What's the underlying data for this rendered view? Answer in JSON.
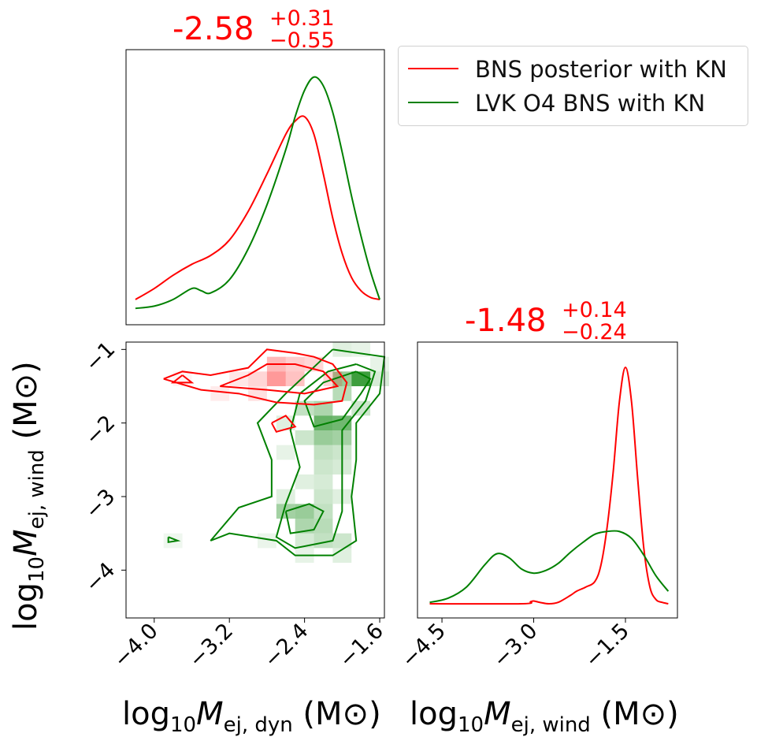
{
  "chart_data": [
    {
      "type": "line",
      "panel": "top-left marginal",
      "title_value": "-2.58",
      "title_plus": "+0.31",
      "title_minus": "−0.55",
      "xlim": [
        -4.3,
        -1.55
      ],
      "series": [
        {
          "name": "BNS posterior with KN",
          "color": "#ff0000",
          "x": [
            -4.2,
            -4.0,
            -3.8,
            -3.6,
            -3.4,
            -3.2,
            -3.0,
            -2.8,
            -2.6,
            -2.5,
            -2.4,
            -2.3,
            -2.2,
            -2.1,
            -2.0,
            -1.9,
            -1.8,
            -1.7,
            -1.6
          ],
          "y": [
            0.05,
            0.1,
            0.16,
            0.21,
            0.25,
            0.32,
            0.45,
            0.62,
            0.8,
            0.86,
            0.88,
            0.8,
            0.62,
            0.42,
            0.26,
            0.15,
            0.09,
            0.06,
            0.05
          ]
        },
        {
          "name": "LVK O4 BNS with KN",
          "color": "#008000",
          "x": [
            -4.2,
            -4.0,
            -3.8,
            -3.6,
            -3.5,
            -3.4,
            -3.2,
            -3.0,
            -2.8,
            -2.6,
            -2.5,
            -2.4,
            -2.3,
            -2.2,
            -2.1,
            -2.0,
            -1.9,
            -1.8,
            -1.7,
            -1.6
          ],
          "y": [
            0.01,
            0.02,
            0.05,
            0.1,
            0.09,
            0.08,
            0.14,
            0.28,
            0.48,
            0.73,
            0.88,
            1.0,
            1.06,
            1.02,
            0.9,
            0.72,
            0.52,
            0.34,
            0.18,
            0.05
          ]
        }
      ]
    },
    {
      "type": "heatmap",
      "panel": "bottom-left joint",
      "xlabel": "log10Mej,dyn (M⊙)",
      "ylabel": "log10Mej,wind (M⊙)",
      "xlim": [
        -4.3,
        -1.55
      ],
      "ylim": [
        -4.65,
        -0.9
      ],
      "xticks": [
        -4.0,
        -3.2,
        -2.4,
        -1.6
      ],
      "xtick_labels": [
        "−4.0",
        "−3.2",
        "−2.4",
        "−1.6"
      ],
      "yticks": [
        -1,
        -2,
        -3,
        -4
      ],
      "ytick_labels": [
        "−1",
        "−2",
        "−3",
        "−4"
      ],
      "red_cells": [
        [
          -2.7,
          -1.2,
          0.35
        ],
        [
          -2.7,
          -1.4,
          0.5
        ],
        [
          -2.5,
          -1.2,
          0.25
        ],
        [
          -2.3,
          -1.2,
          0.2
        ],
        [
          -2.1,
          -1.4,
          0.2
        ],
        [
          -2.9,
          -1.4,
          0.2
        ],
        [
          -3.1,
          -1.4,
          0.12
        ],
        [
          -3.3,
          -1.6,
          0.1
        ],
        [
          -2.9,
          -1.6,
          0.15
        ],
        [
          -2.5,
          -1.4,
          0.3
        ],
        [
          -3.7,
          -1.4,
          0.06
        ]
      ],
      "green_cells": [
        [
          -1.8,
          -1.4,
          0.95
        ],
        [
          -2.0,
          -1.4,
          0.5
        ],
        [
          -2.0,
          -1.6,
          0.35
        ],
        [
          -2.0,
          -2.0,
          0.7
        ],
        [
          -2.2,
          -2.0,
          0.75
        ],
        [
          -2.2,
          -2.2,
          0.5
        ],
        [
          -2.0,
          -2.2,
          0.45
        ],
        [
          -2.2,
          -1.8,
          0.4
        ],
        [
          -2.4,
          -1.8,
          0.3
        ],
        [
          -2.4,
          -2.2,
          0.25
        ],
        [
          -2.2,
          -2.4,
          0.3
        ],
        [
          -2.2,
          -2.6,
          0.25
        ],
        [
          -2.2,
          -2.8,
          0.2
        ],
        [
          -2.2,
          -3.0,
          0.25
        ],
        [
          -2.2,
          -3.2,
          0.3
        ],
        [
          -2.4,
          -3.2,
          0.5
        ],
        [
          -2.6,
          -3.2,
          0.45
        ],
        [
          -2.4,
          -3.4,
          0.4
        ],
        [
          -2.2,
          -3.4,
          0.35
        ],
        [
          -2.2,
          -3.6,
          0.3
        ],
        [
          -2.0,
          -3.6,
          0.25
        ],
        [
          -2.4,
          -3.6,
          0.2
        ],
        [
          -2.0,
          -2.6,
          0.2
        ],
        [
          -2.6,
          -2.0,
          0.15
        ],
        [
          -2.6,
          -2.4,
          0.12
        ],
        [
          -1.8,
          -1.8,
          0.25
        ],
        [
          -1.6,
          -1.4,
          0.2
        ],
        [
          -1.6,
          -1.2,
          0.12
        ],
        [
          -2.0,
          -1.0,
          0.15
        ],
        [
          -1.8,
          -1.0,
          0.12
        ],
        [
          -2.6,
          -3.0,
          0.15
        ],
        [
          -2.0,
          -2.4,
          0.25
        ],
        [
          -2.0,
          -3.0,
          0.15
        ],
        [
          -2.4,
          -2.8,
          0.15
        ],
        [
          -3.8,
          -3.6,
          0.08
        ],
        [
          -2.8,
          -3.6,
          0.1
        ],
        [
          -2.0,
          -3.8,
          0.15
        ],
        [
          -2.4,
          -3.8,
          0.12
        ]
      ],
      "red_contours": [
        [
          [
            -3.9,
            -1.4
          ],
          [
            -3.7,
            -1.3
          ],
          [
            -3.4,
            -1.35
          ],
          [
            -3.0,
            -1.25
          ],
          [
            -2.8,
            -1.0
          ],
          [
            -2.5,
            -1.05
          ],
          [
            -2.3,
            -1.1
          ],
          [
            -2.1,
            -1.2
          ],
          [
            -1.95,
            -1.45
          ],
          [
            -2.0,
            -1.7
          ],
          [
            -2.3,
            -1.75
          ],
          [
            -2.7,
            -1.72
          ],
          [
            -3.1,
            -1.6
          ],
          [
            -3.5,
            -1.55
          ],
          [
            -3.9,
            -1.4
          ]
        ],
        [
          [
            -3.7,
            -1.35
          ],
          [
            -3.8,
            -1.45
          ],
          [
            -3.6,
            -1.45
          ],
          [
            -3.7,
            -1.35
          ]
        ],
        [
          [
            -3.3,
            -1.5
          ],
          [
            -3.0,
            -1.35
          ],
          [
            -2.8,
            -1.2
          ],
          [
            -2.5,
            -1.2
          ],
          [
            -2.2,
            -1.3
          ],
          [
            -2.05,
            -1.5
          ],
          [
            -2.4,
            -1.6
          ],
          [
            -2.8,
            -1.55
          ],
          [
            -3.3,
            -1.5
          ]
        ],
        [
          [
            -2.75,
            -2.0
          ],
          [
            -2.6,
            -1.9
          ],
          [
            -2.5,
            -2.05
          ],
          [
            -2.7,
            -2.12
          ],
          [
            -2.75,
            -2.0
          ]
        ]
      ],
      "green_contours": [
        [
          [
            -2.1,
            -1.0
          ],
          [
            -1.55,
            -1.1
          ],
          [
            -1.6,
            -1.6
          ],
          [
            -1.85,
            -2.0
          ],
          [
            -1.85,
            -2.5
          ],
          [
            -1.9,
            -3.0
          ],
          [
            -1.85,
            -3.6
          ],
          [
            -2.1,
            -3.8
          ],
          [
            -2.5,
            -3.8
          ],
          [
            -2.7,
            -3.6
          ],
          [
            -3.2,
            -3.5
          ],
          [
            -3.4,
            -3.6
          ],
          [
            -3.1,
            -3.15
          ],
          [
            -2.75,
            -3.0
          ],
          [
            -2.75,
            -2.5
          ],
          [
            -2.9,
            -2.0
          ],
          [
            -2.6,
            -1.6
          ],
          [
            -2.35,
            -1.3
          ],
          [
            -2.1,
            -1.0
          ]
        ],
        [
          [
            -1.85,
            -1.2
          ],
          [
            -1.65,
            -1.3
          ],
          [
            -1.75,
            -1.7
          ],
          [
            -2.0,
            -2.1
          ],
          [
            -2.0,
            -2.6
          ],
          [
            -2.0,
            -3.2
          ],
          [
            -2.1,
            -3.6
          ],
          [
            -2.5,
            -3.7
          ],
          [
            -2.7,
            -3.55
          ],
          [
            -2.6,
            -3.1
          ],
          [
            -2.45,
            -2.6
          ],
          [
            -2.55,
            -2.1
          ],
          [
            -2.45,
            -1.6
          ],
          [
            -2.15,
            -1.3
          ],
          [
            -1.85,
            -1.2
          ]
        ],
        [
          [
            -1.85,
            -1.3
          ],
          [
            -1.7,
            -1.4
          ],
          [
            -1.8,
            -1.6
          ],
          [
            -2.0,
            -1.95
          ],
          [
            -2.3,
            -2.05
          ],
          [
            -2.4,
            -1.7
          ],
          [
            -2.2,
            -1.45
          ],
          [
            -1.85,
            -1.3
          ]
        ],
        [
          [
            -2.6,
            -3.2
          ],
          [
            -2.35,
            -3.1
          ],
          [
            -2.2,
            -3.2
          ],
          [
            -2.3,
            -3.45
          ],
          [
            -2.55,
            -3.5
          ],
          [
            -2.6,
            -3.2
          ]
        ],
        [
          [
            -3.85,
            -3.55
          ],
          [
            -3.75,
            -3.6
          ],
          [
            -3.85,
            -3.62
          ],
          [
            -3.85,
            -3.55
          ]
        ]
      ]
    },
    {
      "type": "line",
      "panel": "bottom-right marginal",
      "title_value": "-1.48",
      "title_plus": "+0.14",
      "title_minus": "−0.24",
      "xlabel": "log10Mej,wind (M⊙)",
      "xlim": [
        -4.9,
        -0.65
      ],
      "xticks": [
        -4.5,
        -3.0,
        -1.5
      ],
      "xtick_labels": [
        "−4.5",
        "−3.0",
        "−1.5"
      ],
      "series": [
        {
          "name": "BNS posterior with KN",
          "color": "#ff0000",
          "x": [
            -4.7,
            -3.2,
            -3.05,
            -3.0,
            -2.9,
            -2.75,
            -2.6,
            -2.4,
            -2.3,
            -2.15,
            -2.0,
            -1.9,
            -1.8,
            -1.7,
            -1.6,
            -1.5,
            -1.4,
            -1.3,
            -1.2,
            -1.1,
            -1.0,
            -0.9,
            -0.8
          ],
          "y": [
            0.0,
            0.0,
            0.015,
            0.02,
            0.01,
            0.0,
            0.01,
            0.06,
            0.09,
            0.12,
            0.16,
            0.28,
            0.55,
            0.95,
            1.45,
            1.7,
            1.45,
            0.9,
            0.4,
            0.12,
            0.03,
            0.01,
            0.0
          ]
        },
        {
          "name": "LVK O4 BNS with KN",
          "color": "#008000",
          "x": [
            -4.7,
            -4.4,
            -4.1,
            -3.8,
            -3.6,
            -3.4,
            -3.2,
            -3.0,
            -2.8,
            -2.6,
            -2.4,
            -2.2,
            -2.0,
            -1.8,
            -1.6,
            -1.4,
            -1.2,
            -1.0,
            -0.8
          ],
          "y": [
            0.01,
            0.04,
            0.12,
            0.28,
            0.36,
            0.33,
            0.25,
            0.22,
            0.24,
            0.29,
            0.37,
            0.44,
            0.5,
            0.52,
            0.52,
            0.47,
            0.35,
            0.2,
            0.09
          ]
        }
      ]
    }
  ],
  "titles": {
    "top": {
      "value": "-2.58",
      "plus": "+0.31",
      "minus": "−0.55"
    },
    "right": {
      "value": "-1.48",
      "plus": "+0.14",
      "minus": "−0.24"
    }
  },
  "labels": {
    "x_left_base": "log",
    "x_left_sub": "10",
    "x_left_var": "M",
    "x_left_varsub": "ej, dyn",
    "x_left_unit": " (M⊙)",
    "x_right_base": "log",
    "x_right_sub": "10",
    "x_right_var": "M",
    "x_right_varsub": "ej, wind",
    "x_right_unit": " (M⊙)",
    "y_base": "log",
    "y_sub": "10",
    "y_var": "M",
    "y_varsub": "ej, wind",
    "y_unit": " (M⊙)"
  },
  "legend": [
    {
      "label": "BNS posterior with KN",
      "color": "#ff0000"
    },
    {
      "label": "LVK O4 BNS with KN",
      "color": "#008000"
    }
  ],
  "colors": {
    "red": "#ff0000",
    "green": "#008000"
  }
}
